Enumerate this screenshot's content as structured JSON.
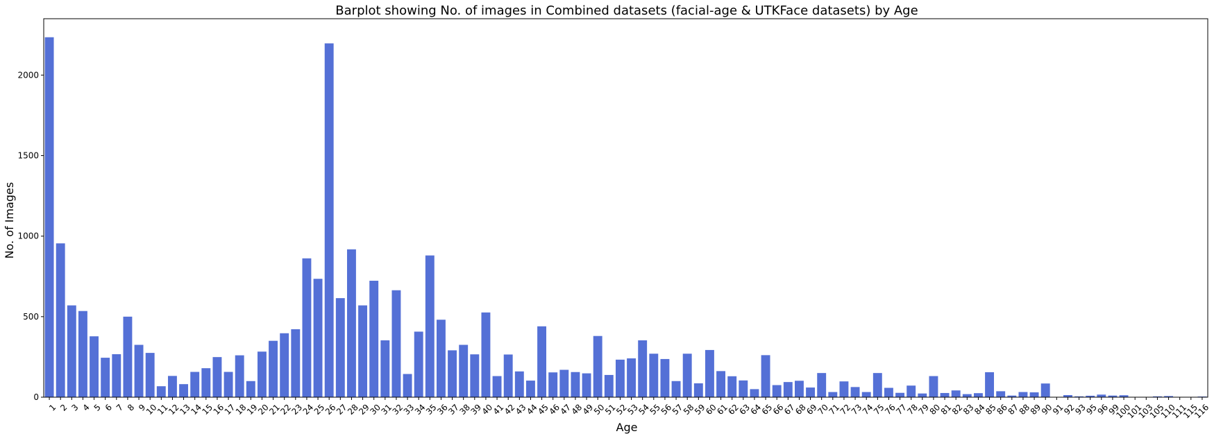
{
  "chart_data": {
    "type": "bar",
    "title": "Barplot showing No. of images in Combined datasets (facial-age & UTKFace datasets) by Age",
    "xlabel": "Age",
    "ylabel": "No. of Images",
    "ylim": [
      0,
      2350
    ],
    "yticks": [
      0,
      500,
      1000,
      1500,
      2000
    ],
    "grid": false,
    "bar_color": "#5470d6",
    "categories": [
      "1",
      "2",
      "3",
      "4",
      "5",
      "6",
      "7",
      "8",
      "9",
      "10",
      "11",
      "12",
      "13",
      "14",
      "15",
      "16",
      "17",
      "18",
      "19",
      "20",
      "21",
      "22",
      "23",
      "24",
      "25",
      "26",
      "27",
      "28",
      "29",
      "30",
      "31",
      "32",
      "33",
      "34",
      "35",
      "36",
      "37",
      "38",
      "39",
      "40",
      "41",
      "42",
      "43",
      "44",
      "45",
      "46",
      "47",
      "48",
      "49",
      "50",
      "51",
      "52",
      "53",
      "54",
      "55",
      "56",
      "57",
      "58",
      "59",
      "60",
      "61",
      "62",
      "63",
      "64",
      "65",
      "66",
      "67",
      "68",
      "69",
      "70",
      "71",
      "72",
      "73",
      "74",
      "75",
      "76",
      "77",
      "78",
      "79",
      "80",
      "81",
      "82",
      "83",
      "84",
      "85",
      "86",
      "87",
      "88",
      "89",
      "90",
      "91",
      "92",
      "93",
      "95",
      "96",
      "99",
      "100",
      "101",
      "103",
      "105",
      "110",
      "111",
      "115",
      "116"
    ],
    "values": [
      2235,
      955,
      570,
      535,
      378,
      245,
      267,
      500,
      325,
      275,
      68,
      132,
      81,
      157,
      180,
      249,
      157,
      260,
      100,
      283,
      350,
      397,
      422,
      862,
      735,
      2197,
      615,
      918,
      570,
      723,
      353,
      664,
      144,
      407,
      880,
      481,
      291,
      325,
      266,
      526,
      131,
      265,
      160,
      103,
      440,
      154,
      170,
      156,
      148,
      380,
      138,
      233,
      241,
      353,
      270,
      237,
      100,
      270,
      86,
      293,
      162,
      130,
      104,
      50,
      261,
      75,
      94,
      102,
      60,
      150,
      32,
      98,
      63,
      32,
      150,
      58,
      27,
      72,
      23,
      131,
      26,
      42,
      19,
      25,
      155,
      37,
      10,
      32,
      30,
      85,
      2,
      13,
      5,
      9,
      16,
      10,
      12,
      2,
      1,
      5,
      7,
      1,
      1,
      4
    ]
  }
}
